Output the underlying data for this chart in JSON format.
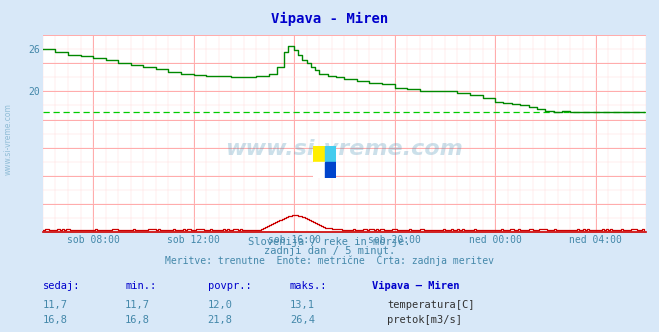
{
  "title": "Vipava - Miren",
  "title_color": "#0000cc",
  "bg_color": "#d8e8f8",
  "plot_bg_color": "#ffffff",
  "grid_color_major": "#ffaaaa",
  "grid_color_minor": "#ffdddd",
  "x_labels": [
    "sob 08:00",
    "sob 12:00",
    "sob 16:00",
    "sob 20:00",
    "ned 00:00",
    "ned 04:00"
  ],
  "x_ticks_idx": [
    24,
    72,
    120,
    168,
    216,
    264
  ],
  "x_max": 288,
  "ylim": [
    0,
    28
  ],
  "ytick_vals": [
    20,
    26
  ],
  "ytick_pos": [
    20,
    26
  ],
  "ylabel_color": "#4488aa",
  "axis_color": "#cc0000",
  "watermark_text": "www.si-vreme.com",
  "subtitle1": "Slovenija / reke in morje.",
  "subtitle2": "zadnji dan / 5 minut.",
  "subtitle3": "Meritve: trenutne  Enote: metrične  Črta: zadnja meritev",
  "subtitle_color": "#4488aa",
  "table_headers": [
    "sedaj:",
    "min.:",
    "povpr.:",
    "maks.:",
    "Vipava – Miren"
  ],
  "table_row1_vals": [
    "11,7",
    "11,7",
    "12,0",
    "13,1"
  ],
  "table_row2_vals": [
    "16,8",
    "16,8",
    "21,8",
    "26,4"
  ],
  "legend1": "temperatura[C]",
  "legend2": "pretok[m3/s]",
  "temp_color": "#cc0000",
  "flow_color": "#008800",
  "avg_line_color": "#00cc00",
  "avg_line_value": 17.0,
  "temp_scale_min": 0.0,
  "temp_scale_max": 28.0,
  "temp_real_min": 11.7,
  "temp_real_max": 13.1,
  "flow_real_min": 16.8,
  "flow_real_max": 26.4,
  "logo_colors": [
    "#ffee00",
    "#44ccee",
    "#ffffff",
    "#0044cc"
  ]
}
